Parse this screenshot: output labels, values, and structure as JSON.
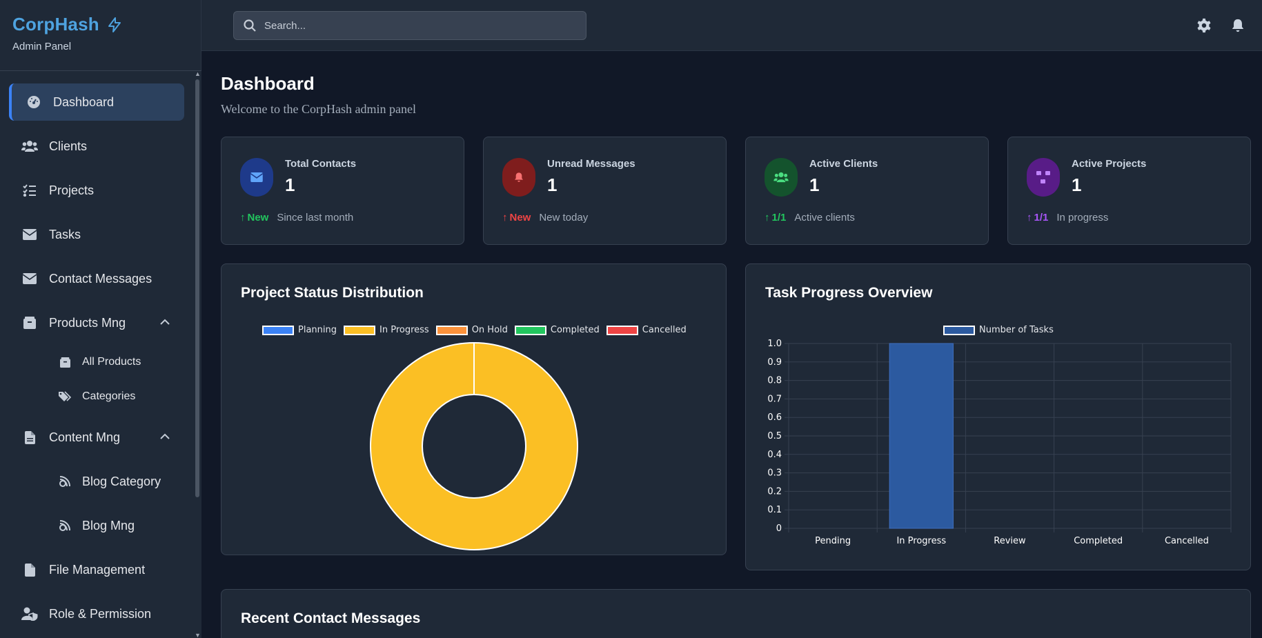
{
  "brand": {
    "title": "CorpHash",
    "subtitle": "Admin Panel"
  },
  "sidebar": {
    "items": [
      {
        "label": "Dashboard",
        "icon": "gauge-icon"
      },
      {
        "label": "Clients",
        "icon": "users-icon"
      },
      {
        "label": "Projects",
        "icon": "list-check-icon"
      },
      {
        "label": "Tasks",
        "icon": "envelope-icon"
      },
      {
        "label": "Contact Messages",
        "icon": "envelope-icon"
      },
      {
        "label": "Products Mng",
        "icon": "box-icon"
      },
      {
        "label": "All Products",
        "icon": "box-icon"
      },
      {
        "label": "Categories",
        "icon": "tags-icon"
      },
      {
        "label": "Content Mng",
        "icon": "file-icon"
      },
      {
        "label": "Blog Category",
        "icon": "blog-icon"
      },
      {
        "label": "Blog Mng",
        "icon": "blog-icon"
      },
      {
        "label": "File Management",
        "icon": "file-icon"
      },
      {
        "label": "Role & Permission",
        "icon": "user-shield-icon"
      }
    ]
  },
  "search": {
    "placeholder": "Search..."
  },
  "header": {
    "title": "Dashboard",
    "subtitle": "Welcome to the CorpHash admin panel"
  },
  "stats": [
    {
      "label": "Total Contacts",
      "value": "1",
      "delta": "New",
      "desc": "Since last month",
      "color": "#22c55e",
      "icon_bg": "#1e3a8a",
      "icon_color": "#60a5fa",
      "icon": "envelope-icon"
    },
    {
      "label": "Unread Messages",
      "value": "1",
      "delta": "New",
      "desc": "New today",
      "color": "#ef4444",
      "icon_bg": "#7f1d1d",
      "icon_color": "#f87171",
      "icon": "bell-icon"
    },
    {
      "label": "Active Clients",
      "value": "1",
      "delta": "1/1",
      "desc": "Active clients",
      "color": "#22c55e",
      "icon_bg": "#14532d",
      "icon_color": "#4ade80",
      "icon": "users-icon"
    },
    {
      "label": "Active Projects",
      "value": "1",
      "delta": "1/1",
      "desc": "In progress",
      "color": "#a855f7",
      "icon_bg": "#581c87",
      "icon_color": "#c084fc",
      "icon": "diagram-icon"
    }
  ],
  "panels": {
    "project_status": "Project Status Distribution",
    "task_progress": "Task Progress Overview",
    "recent_messages": "Recent Contact Messages"
  },
  "chart_data": [
    {
      "type": "pie",
      "title": "Project Status Distribution",
      "categories": [
        "Planning",
        "In Progress",
        "On Hold",
        "Completed",
        "Cancelled"
      ],
      "values": [
        0,
        1,
        0,
        0,
        0
      ],
      "colors": [
        "#3b82f6",
        "#fbbf24",
        "#fb923c",
        "#22c55e",
        "#ef4444"
      ],
      "donut": true,
      "legend": "top"
    },
    {
      "type": "bar",
      "title": "Task Progress Overview",
      "categories": [
        "Pending",
        "In Progress",
        "Review",
        "Completed",
        "Cancelled"
      ],
      "series": [
        {
          "name": "Number of Tasks",
          "values": [
            0,
            1,
            0,
            0,
            0
          ]
        }
      ],
      "ylim": [
        0,
        1.0
      ],
      "yticks": [
        "1.0",
        "0.9",
        "0.8",
        "0.7",
        "0.6",
        "0.5",
        "0.4",
        "0.3",
        "0.2",
        "0.1",
        "0"
      ],
      "color": "#2c5aa0",
      "grid": true,
      "legend": "top"
    }
  ]
}
